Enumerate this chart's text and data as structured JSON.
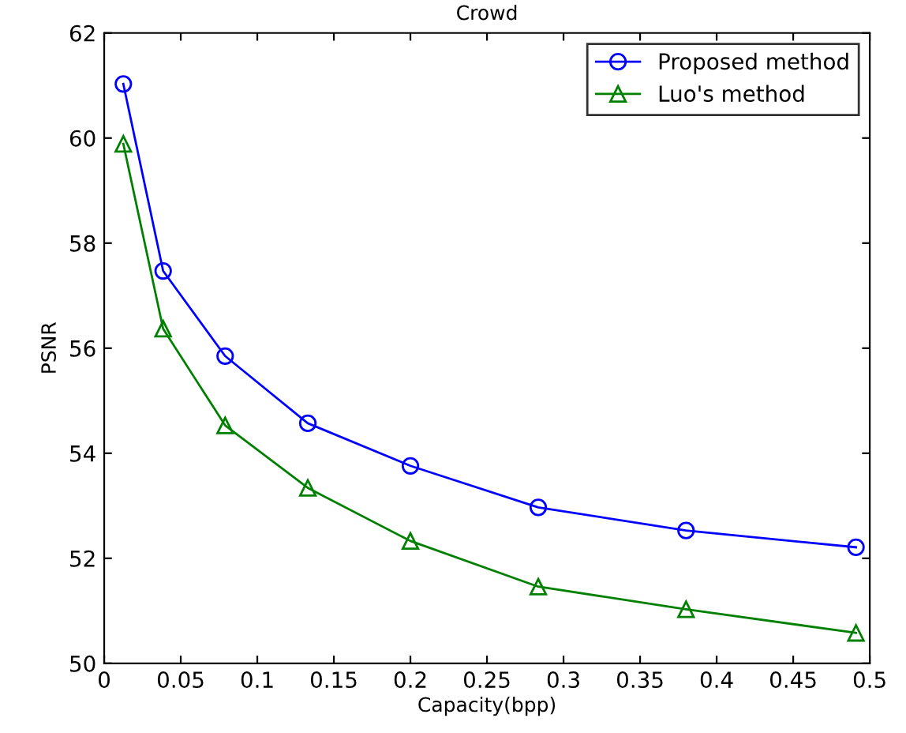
{
  "chart_data": {
    "type": "line",
    "title": "Crowd",
    "xlabel": "Capacity(bpp)",
    "ylabel": "PSNR",
    "x": [
      0.0125,
      0.0385,
      0.079,
      0.133,
      0.2,
      0.2835,
      0.38,
      0.491
    ],
    "series": [
      {
        "name": "Proposed method",
        "color": "#0000ff",
        "marker": "circle",
        "values": [
          61.03,
          57.47,
          55.85,
          54.57,
          53.76,
          52.97,
          52.53,
          52.21
        ]
      },
      {
        "name": "Luo's method",
        "color": "#008000",
        "marker": "triangle",
        "values": [
          59.89,
          56.37,
          54.53,
          53.34,
          52.33,
          51.46,
          51.03,
          50.58
        ]
      }
    ],
    "xlim": [
      0,
      0.5
    ],
    "xticks": [
      0,
      0.05,
      0.1,
      0.15,
      0.2,
      0.25,
      0.3,
      0.35,
      0.4,
      0.45,
      0.5
    ],
    "ylim": [
      50,
      62
    ],
    "yticks": [
      50,
      52,
      54,
      56,
      58,
      60,
      62
    ],
    "grid": false,
    "legend": "top right",
    "line_style": "solid"
  }
}
